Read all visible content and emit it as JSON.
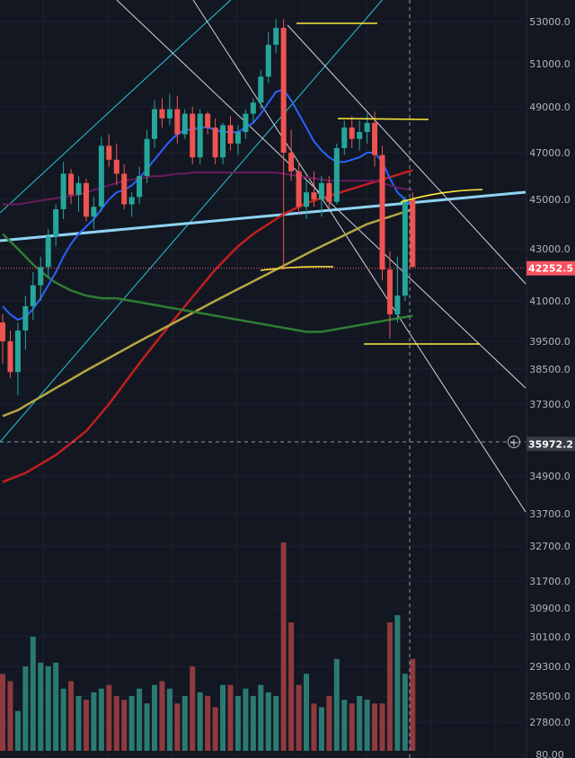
{
  "chart_data": {
    "type": "candlestick",
    "price_axis": {
      "ticks": [
        "53000.0",
        "51000.0",
        "49000.0",
        "47000.0",
        "45000.0",
        "43000.0",
        "41000.0",
        "39500.0",
        "38500.0",
        "37300.0",
        "34900.0",
        "33700.0",
        "32700.0",
        "31700.0",
        "30900.0",
        "30100.0",
        "29300.0",
        "28500.0",
        "27800.0",
        "80.00"
      ],
      "tick_values": [
        53000,
        51000,
        49000,
        47000,
        45000,
        43000,
        41000,
        39500,
        38500,
        37300,
        34900,
        33700,
        32700,
        31700,
        30900,
        30100,
        29300,
        28500,
        27800,
        80
      ]
    },
    "last_price": {
      "label": "42252.5",
      "value": 42252.5,
      "color": "#f7525f"
    },
    "crosshair_price": {
      "label": "35972.2",
      "value": 35972.2
    },
    "colors": {
      "background": "#131722",
      "up": "#26a69a",
      "down": "#ef5350",
      "volume_up": "#2b7a72",
      "volume_down": "#8f3a3f",
      "ma_blue": "#2962ff",
      "ma_purple": "#6a1b5e",
      "ma_red": "#c41e1e",
      "ma_yellow": "#b5a642",
      "ma_green": "#2e7d32",
      "trendline_lightblue": "#8fd3f4",
      "channel_cyan": "#26c6da",
      "channel_white": "#d1d4dc",
      "level_yellow": "#ffeb3b"
    },
    "candles": [
      [
        40200,
        40500,
        38700,
        39500
      ],
      [
        39500,
        39900,
        38200,
        38400
      ],
      [
        38400,
        40200,
        37600,
        39900
      ],
      [
        39900,
        41200,
        39200,
        40800
      ],
      [
        40800,
        42100,
        40300,
        41600
      ],
      [
        41600,
        42700,
        41000,
        42300
      ],
      [
        42300,
        43800,
        41900,
        43500
      ],
      [
        43500,
        44800,
        43100,
        44600
      ],
      [
        44600,
        46600,
        44200,
        46100
      ],
      [
        46100,
        46300,
        44800,
        45200
      ],
      [
        45200,
        46000,
        44500,
        45700
      ],
      [
        45700,
        45900,
        44100,
        44300
      ],
      [
        44300,
        45100,
        43800,
        44700
      ],
      [
        44700,
        47700,
        44500,
        47300
      ],
      [
        47300,
        47800,
        46400,
        46700
      ],
      [
        46700,
        47400,
        45600,
        46100
      ],
      [
        46100,
        46500,
        44600,
        44800
      ],
      [
        44800,
        45300,
        44300,
        45100
      ],
      [
        45100,
        46400,
        44800,
        46000
      ],
      [
        46000,
        48000,
        45700,
        47600
      ],
      [
        47600,
        49300,
        47200,
        48900
      ],
      [
        48900,
        49400,
        48100,
        48500
      ],
      [
        48500,
        49600,
        48200,
        48900
      ],
      [
        48900,
        49500,
        47400,
        47800
      ],
      [
        47800,
        48900,
        47600,
        48700
      ],
      [
        48700,
        49000,
        46500,
        46800
      ],
      [
        46800,
        48900,
        46500,
        48700
      ],
      [
        48700,
        48800,
        47800,
        48100
      ],
      [
        48100,
        48500,
        46500,
        46800
      ],
      [
        46800,
        48300,
        46500,
        48200
      ],
      [
        48200,
        48600,
        47100,
        47400
      ],
      [
        47400,
        48200,
        46900,
        47900
      ],
      [
        47900,
        48900,
        47600,
        48700
      ],
      [
        48700,
        49400,
        48300,
        49200
      ],
      [
        49200,
        50700,
        48900,
        50400
      ],
      [
        50400,
        52500,
        50100,
        51900
      ],
      [
        51900,
        53100,
        51500,
        52700
      ],
      [
        52700,
        53100,
        42200,
        47000
      ],
      [
        47000,
        48000,
        45800,
        46200
      ],
      [
        46200,
        46600,
        44400,
        44700
      ],
      [
        44700,
        45800,
        44200,
        45300
      ],
      [
        45300,
        46200,
        44700,
        45000
      ],
      [
        45000,
        46000,
        44300,
        45700
      ],
      [
        45700,
        46000,
        44600,
        44900
      ],
      [
        44900,
        47400,
        44800,
        47200
      ],
      [
        47200,
        48400,
        46900,
        48100
      ],
      [
        48100,
        48600,
        47200,
        47600
      ],
      [
        47600,
        48400,
        47100,
        47900
      ],
      [
        47900,
        48700,
        47400,
        48300
      ],
      [
        48300,
        48800,
        46400,
        46900
      ],
      [
        46900,
        47300,
        41800,
        42200
      ],
      [
        42200,
        42900,
        39600,
        40500
      ],
      [
        40500,
        42700,
        40200,
        41200
      ],
      [
        41200,
        45100,
        41000,
        45000
      ],
      [
        45000,
        45300,
        42300,
        42300
      ]
    ],
    "volumes": [
      29100,
      28900,
      28100,
      29300,
      30100,
      29400,
      29300,
      29400,
      28700,
      28900,
      28500,
      28400,
      28600,
      28700,
      28800,
      28500,
      28400,
      28500,
      28700,
      28300,
      28800,
      28900,
      28700,
      28300,
      28500,
      29300,
      28600,
      28500,
      28200,
      28800,
      28800,
      28500,
      28700,
      28500,
      28800,
      28600,
      28500,
      32800,
      30500,
      28800,
      29100,
      28300,
      28200,
      28500,
      29500,
      28400,
      28300,
      28500,
      28400,
      28300,
      28300,
      30500,
      30700,
      29100,
      29500
    ],
    "moving_averages": [
      {
        "color_key": "ma_blue",
        "values": [
          40800,
          40500,
          40300,
          40400,
          40700,
          41100,
          41600,
          42100,
          42700,
          43200,
          43600,
          43900,
          44200,
          44600,
          45000,
          45300,
          45400,
          45600,
          45900,
          46300,
          46700,
          47100,
          47500,
          47800,
          48000,
          48000,
          48100,
          48100,
          48000,
          47900,
          47900,
          47900,
          48100,
          48300,
          48700,
          49200,
          49700,
          49800,
          49300,
          48700,
          48100,
          47500,
          47100,
          46800,
          46600,
          46600,
          46700,
          46800,
          47000,
          47000,
          46600,
          45900,
          45300,
          45000,
          44700
        ]
      },
      {
        "color_key": "ma_purple",
        "values": [
          44800,
          44800,
          44800,
          44850,
          44900,
          44950,
          45000,
          45050,
          45100,
          45150,
          45200,
          45300,
          45400,
          45500,
          45600,
          45700,
          45800,
          45850,
          45900,
          45950,
          46000,
          46000,
          46050,
          46100,
          46100,
          46150,
          46150,
          46150,
          46150,
          46150,
          46150,
          46150,
          46150,
          46150,
          46150,
          46150,
          46150,
          46100,
          46050,
          46000,
          45950,
          45900,
          45850,
          45800,
          45800,
          45800,
          45800,
          45800,
          45800,
          45800,
          45700,
          45600,
          45500,
          45450,
          45400
        ]
      }
    ],
    "long_averages": [
      {
        "color_key": "ma_red",
        "values": [
          34700,
          34800,
          34900,
          35000,
          35150,
          35300,
          35450,
          35600,
          35800,
          36000,
          36200,
          36400,
          36700,
          37000,
          37300,
          37650,
          38000,
          38350,
          38700,
          39050,
          39400,
          39750,
          40100,
          40450,
          40800,
          41150,
          41500,
          41850,
          42200,
          42500,
          42800,
          43100,
          43350,
          43600,
          43800,
          44000,
          44200,
          44400,
          44550,
          44700,
          44850,
          44950,
          45050,
          45150,
          45250,
          45350,
          45450,
          45550,
          45650,
          45750,
          45850,
          45950,
          46050,
          46150,
          46250
        ]
      },
      {
        "color_key": "ma_yellow",
        "values": [
          36900,
          37000,
          37100,
          37250,
          37400,
          37550,
          37700,
          37850,
          38000,
          38150,
          38300,
          38450,
          38600,
          38750,
          38900,
          39050,
          39200,
          39350,
          39500,
          39650,
          39800,
          39950,
          40100,
          40250,
          40400,
          40550,
          40700,
          40850,
          41000,
          41150,
          41300,
          41450,
          41600,
          41750,
          41900,
          42050,
          42200,
          42350,
          42500,
          42650,
          42800,
          42950,
          43100,
          43250,
          43400,
          43550,
          43700,
          43850,
          44000,
          44100,
          44200,
          44300,
          44400,
          44500,
          44600
        ]
      },
      {
        "color_key": "ma_green",
        "values": [
          43600,
          43300,
          43000,
          42700,
          42400,
          42150,
          41900,
          41700,
          41550,
          41400,
          41300,
          41200,
          41150,
          41100,
          41100,
          41100,
          41050,
          41000,
          40950,
          40900,
          40850,
          40800,
          40750,
          40700,
          40650,
          40600,
          40550,
          40500,
          40450,
          40400,
          40350,
          40300,
          40250,
          40200,
          40150,
          40100,
          40050,
          40000,
          39950,
          39900,
          39850,
          39850,
          39850,
          39900,
          39950,
          40000,
          40050,
          40100,
          40150,
          40200,
          40250,
          40300,
          40350,
          40400,
          40450
        ]
      }
    ]
  }
}
